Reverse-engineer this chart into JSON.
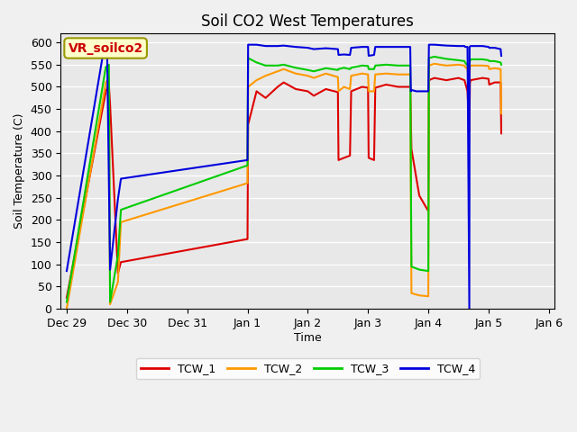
{
  "title": "Soil CO2 West Temperatures",
  "xlabel": "Time",
  "ylabel": "Soil Temperature (C)",
  "annotation": "VR_soilco2",
  "ylim": [
    0,
    620
  ],
  "yticks": [
    0,
    50,
    100,
    150,
    200,
    250,
    300,
    350,
    400,
    450,
    500,
    550,
    600
  ],
  "colors": {
    "TCW_1": "#dd0000",
    "TCW_2": "#ff9900",
    "TCW_3": "#00cc00",
    "TCW_4": "#0000dd"
  },
  "bg_color": "#e8e8e8",
  "fig_bg": "#f0f0f0",
  "line_width": 1.5,
  "xlim": [
    -0.1,
    8.1
  ],
  "xtick_positions": [
    0,
    1,
    2,
    3,
    4,
    5,
    6,
    7,
    8
  ],
  "xtick_labels": [
    "Dec 29",
    "Dec 30",
    "Dec 31",
    "Jan 1",
    "Jan 2",
    "Jan 3",
    "Jan 4",
    "Jan 5",
    "Jan 6"
  ],
  "segments": {
    "TCW_1": [
      [
        0.0,
        25
      ],
      [
        0.65,
        490
      ],
      [
        0.7,
        505
      ],
      [
        0.72,
        460
      ],
      [
        0.85,
        80
      ],
      [
        0.9,
        105
      ],
      [
        3.0,
        157
      ],
      [
        3.01,
        415
      ],
      [
        3.15,
        490
      ],
      [
        3.3,
        475
      ],
      [
        3.5,
        500
      ],
      [
        3.6,
        510
      ],
      [
        3.8,
        495
      ],
      [
        4.0,
        490
      ],
      [
        4.1,
        480
      ],
      [
        4.3,
        495
      ],
      [
        4.5,
        488
      ],
      [
        4.51,
        335
      ],
      [
        4.6,
        340
      ],
      [
        4.7,
        345
      ],
      [
        4.72,
        490
      ],
      [
        4.9,
        500
      ],
      [
        5.0,
        498
      ],
      [
        5.01,
        340
      ],
      [
        5.1,
        335
      ],
      [
        5.12,
        498
      ],
      [
        5.3,
        505
      ],
      [
        5.5,
        500
      ],
      [
        5.7,
        500
      ],
      [
        5.72,
        360
      ],
      [
        5.85,
        255
      ],
      [
        6.0,
        220
      ],
      [
        6.01,
        515
      ],
      [
        6.1,
        520
      ],
      [
        6.3,
        515
      ],
      [
        6.5,
        520
      ],
      [
        6.6,
        515
      ],
      [
        6.61,
        510
      ],
      [
        6.65,
        490
      ],
      [
        6.68,
        400
      ],
      [
        6.69,
        508
      ],
      [
        6.7,
        515
      ],
      [
        6.9,
        520
      ],
      [
        7.0,
        518
      ],
      [
        7.01,
        505
      ],
      [
        7.1,
        510
      ],
      [
        7.2,
        510
      ],
      [
        7.21,
        395
      ]
    ],
    "TCW_2": [
      [
        0.0,
        0
      ],
      [
        0.65,
        510
      ],
      [
        0.7,
        520
      ],
      [
        0.72,
        10
      ],
      [
        0.85,
        60
      ],
      [
        0.9,
        195
      ],
      [
        3.0,
        283
      ],
      [
        3.01,
        500
      ],
      [
        3.15,
        515
      ],
      [
        3.3,
        525
      ],
      [
        3.5,
        535
      ],
      [
        3.6,
        540
      ],
      [
        3.8,
        530
      ],
      [
        4.0,
        525
      ],
      [
        4.1,
        520
      ],
      [
        4.3,
        530
      ],
      [
        4.5,
        522
      ],
      [
        4.51,
        490
      ],
      [
        4.6,
        500
      ],
      [
        4.7,
        495
      ],
      [
        4.72,
        525
      ],
      [
        4.9,
        530
      ],
      [
        5.0,
        528
      ],
      [
        5.01,
        490
      ],
      [
        5.1,
        490
      ],
      [
        5.12,
        528
      ],
      [
        5.3,
        530
      ],
      [
        5.5,
        528
      ],
      [
        5.7,
        528
      ],
      [
        5.72,
        35
      ],
      [
        5.85,
        30
      ],
      [
        6.0,
        28
      ],
      [
        6.01,
        548
      ],
      [
        6.1,
        552
      ],
      [
        6.3,
        548
      ],
      [
        6.5,
        550
      ],
      [
        6.6,
        548
      ],
      [
        6.61,
        545
      ],
      [
        6.65,
        540
      ],
      [
        6.68,
        505
      ],
      [
        6.69,
        545
      ],
      [
        6.7,
        548
      ],
      [
        6.9,
        548
      ],
      [
        7.0,
        547
      ],
      [
        7.01,
        540
      ],
      [
        7.1,
        542
      ],
      [
        7.2,
        540
      ],
      [
        7.21,
        440
      ]
    ],
    "TCW_3": [
      [
        0.0,
        15
      ],
      [
        0.65,
        545
      ],
      [
        0.7,
        550
      ],
      [
        0.72,
        15
      ],
      [
        0.85,
        120
      ],
      [
        0.9,
        223
      ],
      [
        3.0,
        323
      ],
      [
        3.01,
        565
      ],
      [
        3.15,
        555
      ],
      [
        3.3,
        548
      ],
      [
        3.5,
        548
      ],
      [
        3.6,
        550
      ],
      [
        3.8,
        543
      ],
      [
        4.0,
        538
      ],
      [
        4.1,
        535
      ],
      [
        4.3,
        542
      ],
      [
        4.5,
        538
      ],
      [
        4.51,
        540
      ],
      [
        4.6,
        543
      ],
      [
        4.7,
        540
      ],
      [
        4.72,
        543
      ],
      [
        4.9,
        548
      ],
      [
        5.0,
        547
      ],
      [
        5.01,
        540
      ],
      [
        5.1,
        540
      ],
      [
        5.12,
        548
      ],
      [
        5.3,
        550
      ],
      [
        5.5,
        548
      ],
      [
        5.7,
        548
      ],
      [
        5.72,
        95
      ],
      [
        5.85,
        88
      ],
      [
        6.0,
        85
      ],
      [
        6.01,
        565
      ],
      [
        6.1,
        568
      ],
      [
        6.3,
        563
      ],
      [
        6.5,
        560
      ],
      [
        6.6,
        558
      ],
      [
        6.61,
        555
      ],
      [
        6.65,
        548
      ],
      [
        6.68,
        545
      ],
      [
        6.69,
        558
      ],
      [
        6.7,
        562
      ],
      [
        6.9,
        562
      ],
      [
        7.0,
        560
      ],
      [
        7.01,
        558
      ],
      [
        7.1,
        558
      ],
      [
        7.2,
        555
      ],
      [
        7.21,
        550
      ]
    ],
    "TCW_4": [
      [
        0.0,
        85
      ],
      [
        0.62,
        588
      ],
      [
        0.67,
        590
      ],
      [
        0.72,
        88
      ],
      [
        0.85,
        247
      ],
      [
        0.9,
        293
      ],
      [
        3.0,
        335
      ],
      [
        3.01,
        595
      ],
      [
        3.15,
        595
      ],
      [
        3.3,
        592
      ],
      [
        3.5,
        592
      ],
      [
        3.6,
        593
      ],
      [
        3.8,
        590
      ],
      [
        4.0,
        588
      ],
      [
        4.1,
        585
      ],
      [
        4.3,
        587
      ],
      [
        4.5,
        585
      ],
      [
        4.51,
        572
      ],
      [
        4.6,
        573
      ],
      [
        4.7,
        572
      ],
      [
        4.72,
        588
      ],
      [
        4.9,
        590
      ],
      [
        5.0,
        590
      ],
      [
        5.01,
        570
      ],
      [
        5.1,
        572
      ],
      [
        5.12,
        590
      ],
      [
        5.3,
        590
      ],
      [
        5.5,
        590
      ],
      [
        5.7,
        590
      ],
      [
        5.71,
        490
      ],
      [
        5.72,
        493
      ],
      [
        5.8,
        490
      ],
      [
        6.0,
        490
      ],
      [
        6.01,
        595
      ],
      [
        6.1,
        595
      ],
      [
        6.3,
        593
      ],
      [
        6.5,
        592
      ],
      [
        6.6,
        592
      ],
      [
        6.61,
        590
      ],
      [
        6.65,
        590
      ],
      [
        6.68,
        0
      ],
      [
        6.685,
        590
      ],
      [
        6.7,
        592
      ],
      [
        6.9,
        592
      ],
      [
        7.0,
        590
      ],
      [
        7.01,
        588
      ],
      [
        7.1,
        588
      ],
      [
        7.2,
        585
      ],
      [
        7.21,
        570
      ]
    ]
  }
}
